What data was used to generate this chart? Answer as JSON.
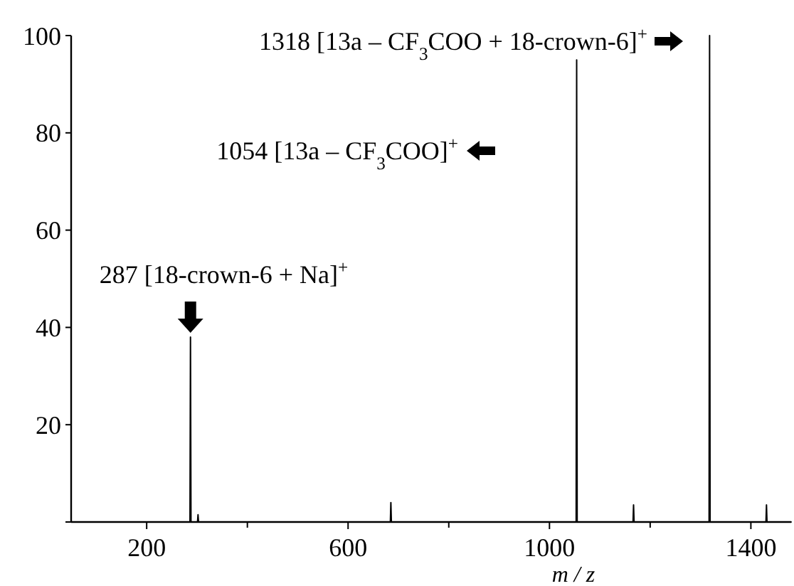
{
  "chart_data": {
    "type": "line",
    "xlabel": "m / z",
    "xlim": [
      50,
      1480
    ],
    "ylim": [
      0,
      100
    ],
    "xticks": [
      200,
      {
        "value": 400,
        "label": null
      },
      600,
      {
        "value": 800,
        "label": null
      },
      1000,
      {
        "value": 1200,
        "label": null
      },
      1400
    ],
    "yticks": [
      {
        "value": 0,
        "label": null
      },
      20,
      40,
      60,
      80,
      100
    ],
    "grid": false,
    "marker": "none",
    "line_style": "solid",
    "x": [
      50,
      286,
      287,
      288,
      301,
      302,
      303,
      684,
      685,
      686,
      1053,
      1054,
      1055,
      1166,
      1167,
      1168,
      1317,
      1318,
      1319,
      1430,
      1431,
      1432,
      1480
    ],
    "series": [
      {
        "color": "#000000",
        "values": [
          0,
          0,
          38,
          0,
          0,
          1.5,
          0,
          0,
          4,
          0,
          0,
          95,
          0,
          0,
          3.5,
          0,
          0,
          100,
          0,
          0,
          3.5,
          0,
          0
        ]
      }
    ],
    "annotations": [
      {
        "text": "287 [18-crown-6 + Na]$^{+}$",
        "x": 287,
        "y": 38
      },
      "1054 [13a – CF$_{3}$COO]$^{+}$",
      "1318 [13a – CF$_{3}$COO + 18-crown-6]$^{+}$"
    ]
  }
}
